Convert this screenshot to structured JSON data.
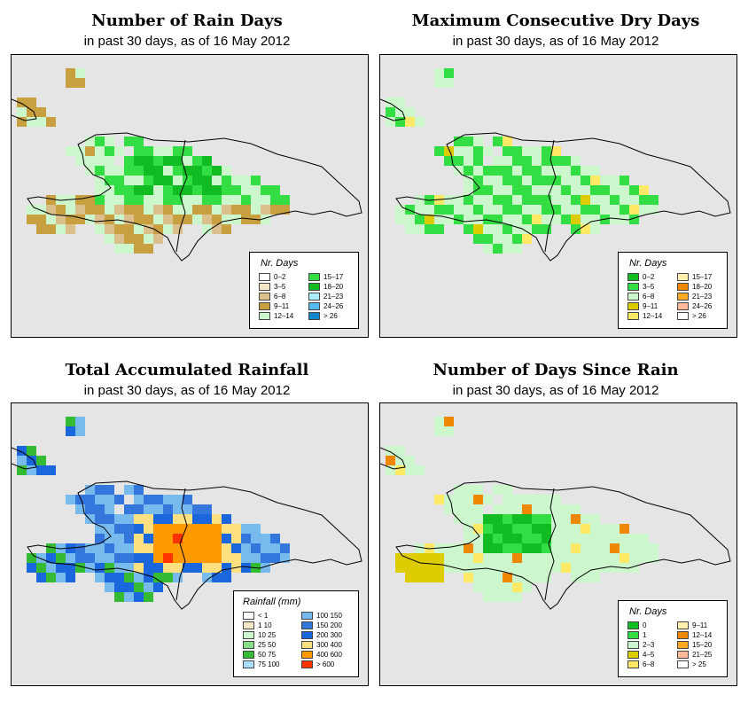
{
  "panels": [
    {
      "id": "rain-days",
      "title": "Number of Rain Days",
      "subtitle": "in past 30 days, as of  16 May 2012",
      "legend_title": "Nr. Days",
      "legend": [
        {
          "label": "0–2",
          "color": "#ffffff"
        },
        {
          "label": "3–5",
          "color": "#f5e6c8"
        },
        {
          "label": "6–8",
          "color": "#dcc08c"
        },
        {
          "label": "9–11",
          "color": "#c8a040"
        },
        {
          "label": "12–14",
          "color": "#ccf7cc"
        },
        {
          "label": "15–17",
          "color": "#33dd44"
        },
        {
          "label": "18–20",
          "color": "#11bb22"
        },
        {
          "label": "21–23",
          "color": "#aaeeff"
        },
        {
          "label": "24–26",
          "color": "#55bbee"
        },
        {
          "label": "> 26",
          "color": "#1188cc"
        }
      ]
    },
    {
      "id": "dry-days",
      "title": "Maximum Consecutive Dry Days",
      "subtitle": "in past 30 days, as of  16 May 2012",
      "legend_title": "Nr. Days",
      "legend": [
        {
          "label": "0–2",
          "color": "#11bb22"
        },
        {
          "label": "3–5",
          "color": "#33dd44"
        },
        {
          "label": "6–8",
          "color": "#ccf7cc"
        },
        {
          "label": "9–11",
          "color": "#ddcc00"
        },
        {
          "label": "12–14",
          "color": "#ffe866"
        },
        {
          "label": "15–17",
          "color": "#fff0b0"
        },
        {
          "label": "18–20",
          "color": "#ee8800"
        },
        {
          "label": "21–23",
          "color": "#ffaa22"
        },
        {
          "label": "24–26",
          "color": "#ffbb99"
        },
        {
          "label": "> 26",
          "color": "#ffffff"
        }
      ]
    },
    {
      "id": "rainfall",
      "title": "Total Accumulated Rainfall",
      "subtitle": "in past 30 days, as of  16 May 2012",
      "legend_title": "Rainfall (mm)",
      "legend": [
        {
          "label": "< 1",
          "color": "#ffffff"
        },
        {
          "label": "1   10",
          "color": "#f5e6c8"
        },
        {
          "label": "10   25",
          "color": "#ccf7cc"
        },
        {
          "label": "25   50",
          "color": "#88dd88"
        },
        {
          "label": "50   75",
          "color": "#33bb33"
        },
        {
          "label": "75   100",
          "color": "#aaddff"
        },
        {
          "label": "100   150",
          "color": "#77bbee"
        },
        {
          "label": "150   200",
          "color": "#3377dd"
        },
        {
          "label": "200   300",
          "color": "#1a66dd"
        },
        {
          "label": "300   400",
          "color": "#ffe080"
        },
        {
          "label": "400   600",
          "color": "#ff9900"
        },
        {
          "label": "> 600",
          "color": "#ff3300"
        }
      ]
    },
    {
      "id": "days-since-rain",
      "title": "Number of Days Since Rain",
      "subtitle": "in past 30 days, as of  16 May 2012",
      "legend_title": "Nr. Days",
      "legend": [
        {
          "label": "0",
          "color": "#11bb22"
        },
        {
          "label": "1",
          "color": "#33dd44"
        },
        {
          "label": "2–3",
          "color": "#ccf7cc"
        },
        {
          "label": "4–5",
          "color": "#ddcc00"
        },
        {
          "label": "6–8",
          "color": "#ffe866"
        },
        {
          "label": "9–11",
          "color": "#fff0b0"
        },
        {
          "label": "12–14",
          "color": "#ee8800"
        },
        {
          "label": "15–20",
          "color": "#ffaa22"
        },
        {
          "label": "21–25",
          "color": "#ffbb99"
        },
        {
          "label": "> 25",
          "color": "#ffffff"
        }
      ]
    }
  ]
}
